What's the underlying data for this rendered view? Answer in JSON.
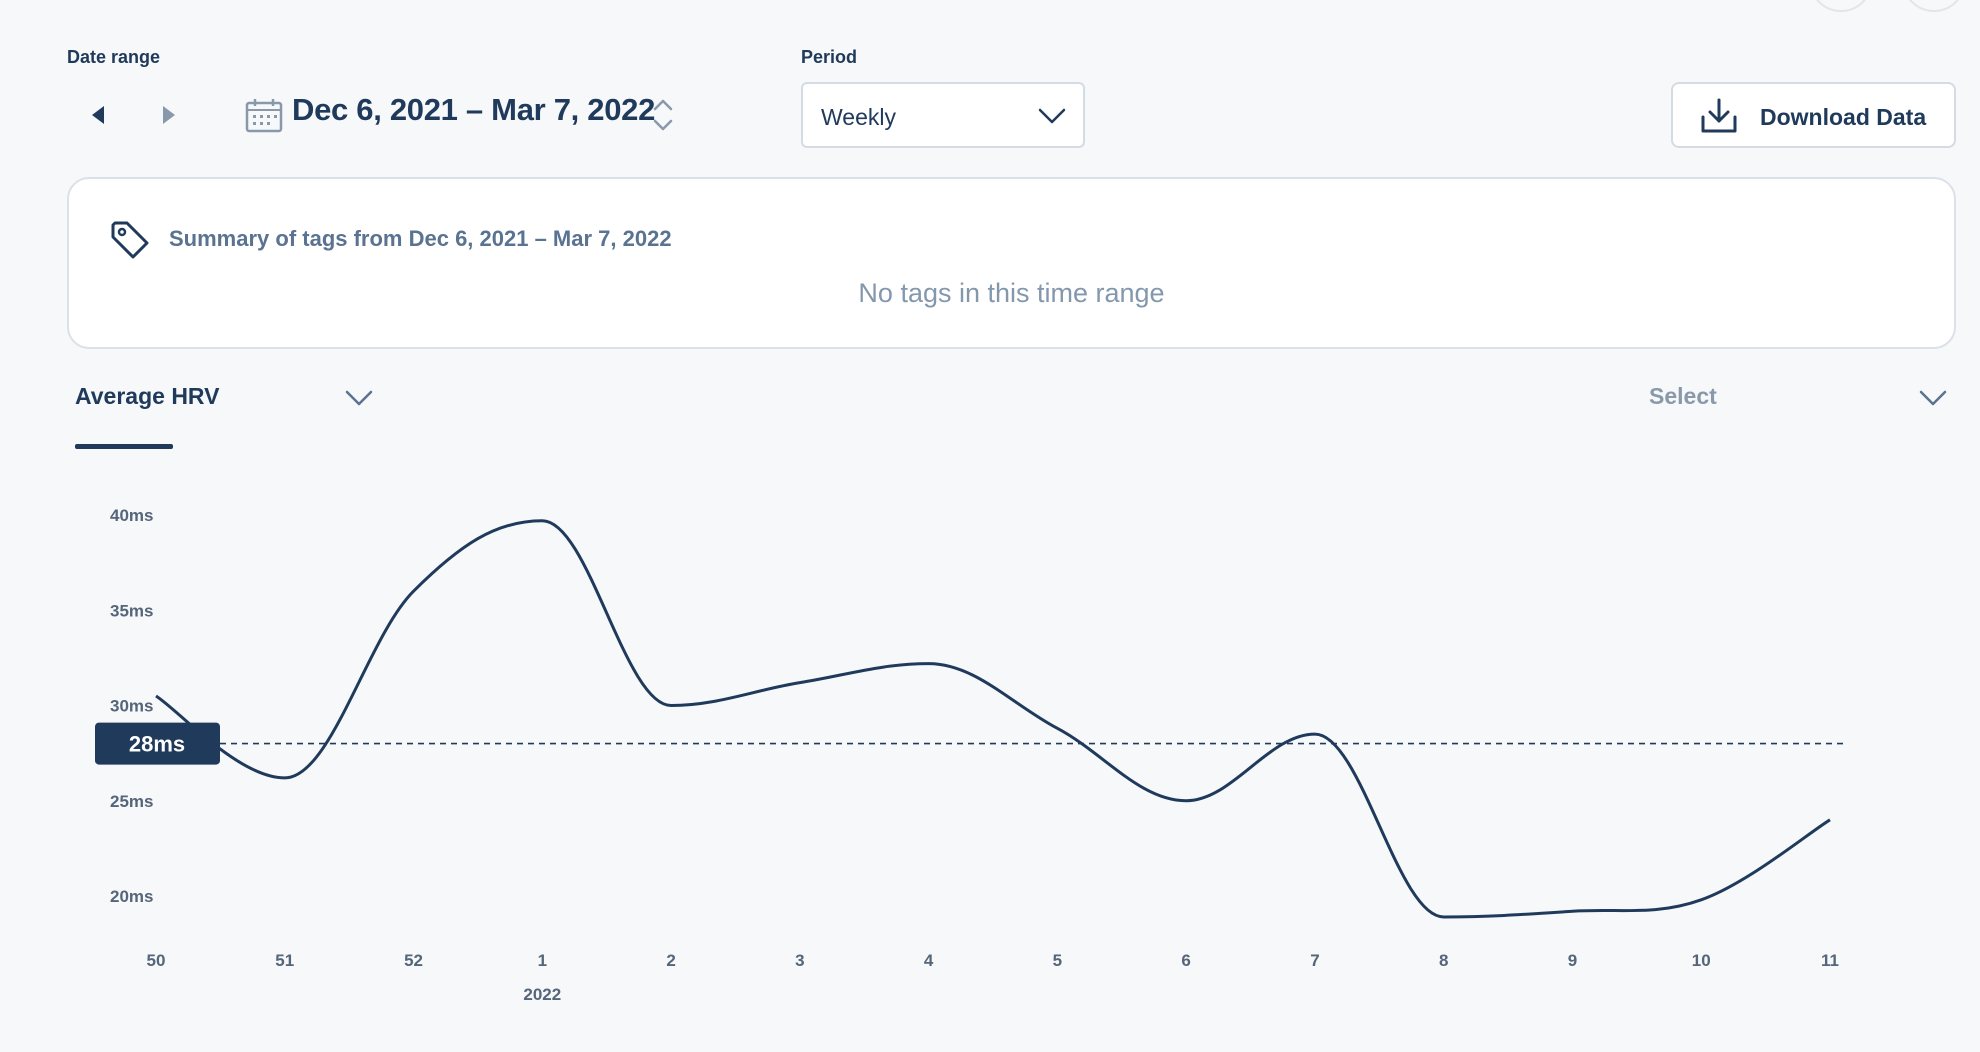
{
  "colors": {
    "primary": "#203a5c",
    "muted": "#8397ad",
    "border": "#d5dbe3",
    "background": "#f6f8fa"
  },
  "date_range": {
    "label": "Date range",
    "prev_icon": "triangle-left-icon",
    "next_icon": "triangle-right-icon",
    "calendar_icon": "calendar-icon",
    "value": "Dec 6, 2021 – Mar 7, 2022",
    "stepper_icon": "up-down-chevron-icon"
  },
  "period": {
    "label": "Period",
    "selected": "Weekly"
  },
  "download": {
    "label": "Download Data",
    "icon": "download-icon"
  },
  "summary": {
    "icon": "tag-icon",
    "title": "Summary of tags from Dec 6, 2021 – Mar 7, 2022",
    "empty_text": "No tags in this time range"
  },
  "metric": {
    "selected": "Average HRV",
    "compare_placeholder": "Select"
  },
  "chart_data": {
    "type": "line",
    "x": [
      "50",
      "51",
      "52",
      "1",
      "2",
      "3",
      "4",
      "5",
      "6",
      "7",
      "8",
      "9",
      "10",
      "11"
    ],
    "x_secondary_label": {
      "at": "1",
      "text": "2022"
    },
    "series": [
      {
        "values": [
          30.5,
          26.2,
          36.0,
          39.7,
          30.0,
          31.2,
          32.2,
          28.8,
          25.0,
          28.5,
          18.9,
          19.2,
          19.8,
          24.0
        ]
      }
    ],
    "yticks": [
      "40ms",
      "35ms",
      "30ms",
      "25ms",
      "20ms"
    ],
    "ytick_values": [
      40,
      35,
      30,
      25,
      20
    ],
    "ylim": [
      20,
      40
    ],
    "average": {
      "value": 28,
      "label": "28ms"
    },
    "grid": false,
    "title": "",
    "xlabel": "",
    "ylabel": ""
  }
}
